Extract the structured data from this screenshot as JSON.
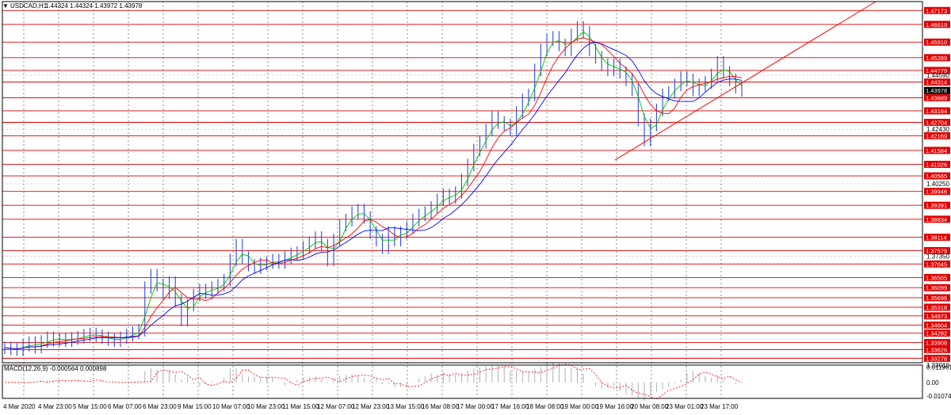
{
  "header": {
    "symbol_label": "USDCAD,H1",
    "ohlc": "1.44324 1.44324 1.43972 1.43978",
    "arrow_glyph": "▼"
  },
  "colors": {
    "grid": "#c0c0c0",
    "level_line": "#e00000",
    "level_label_bg": "#e00000",
    "price_bars": "#2a4bd8",
    "ma_fast": "#00c000",
    "ma_mid": "#ff0000",
    "ma_slow": "#0000ff",
    "trendline": "#ff0000",
    "macd_hist": "#b0b0b0",
    "macd_signal": "#ff0000",
    "current_price_bg": "#000000"
  },
  "chart_data": {
    "type": "line",
    "title": "USDCAD,H1",
    "price_axis": {
      "ylim": [
        1.331,
        1.4753
      ],
      "plain_ticks": [
        "1.44590",
        "1.42430",
        "1.40250",
        "1.37350",
        "1.33010"
      ],
      "current_price": "1.43978"
    },
    "levels": [
      "1.47173",
      "1.46619",
      "1.45910",
      "1.45289",
      "1.44779",
      "1.44314",
      "1.43689",
      "1.43164",
      "1.42704",
      "1.42169",
      "1.41584",
      "1.41026",
      "1.40565",
      "1.39946",
      "1.39391",
      "1.38834",
      "1.38114",
      "1.37579",
      "1.37045",
      "1.36505",
      "1.36099",
      "1.35696",
      "1.35318",
      "1.34973",
      "1.34604",
      "1.34282",
      "1.33908",
      "1.33626",
      "1.33278"
    ],
    "x_labels": [
      "4 Mar 2020",
      "4 Mar 23:00",
      "5 Mar 15:00",
      "6 Mar 07:00",
      "6 Mar 23:00",
      "9 Mar 15:00",
      "10 Mar 07:00",
      "10 Mar 23:00",
      "11 Mar 15:00",
      "12 Mar 07:00",
      "12 Mar 23:00",
      "13 Mar 15:00",
      "16 Mar 08:00",
      "17 Mar 00:00",
      "17 Mar 16:00",
      "18 Mar 08:00",
      "19 Mar 00:00",
      "19 Mar 16:00",
      "20 Mar 08:00",
      "23 Mar 01:00",
      "23 Mar 17:00"
    ],
    "price_path": [
      1.337,
      1.3365,
      1.3362,
      1.338,
      1.339,
      1.3372,
      1.3395,
      1.341,
      1.34,
      1.3405,
      1.3398,
      1.3407,
      1.3412,
      1.342,
      1.3425,
      1.3418,
      1.341,
      1.3402,
      1.3398,
      1.341,
      1.342,
      1.343,
      1.344,
      1.361,
      1.366,
      1.362,
      1.359,
      1.363,
      1.356,
      1.348,
      1.354,
      1.358,
      1.36,
      1.359,
      1.361,
      1.362,
      1.364,
      1.372,
      1.378,
      1.373,
      1.37,
      1.369,
      1.3705,
      1.371,
      1.372,
      1.371,
      1.373,
      1.3745,
      1.375,
      1.377,
      1.379,
      1.381,
      1.378,
      1.372,
      1.38,
      1.386,
      1.388,
      1.391,
      1.392,
      1.389,
      1.383,
      1.38,
      1.377,
      1.383,
      1.38,
      1.383,
      1.385,
      1.388,
      1.39,
      1.391,
      1.393,
      1.396,
      1.398,
      1.397,
      1.399,
      1.404,
      1.41,
      1.416,
      1.419,
      1.424,
      1.429,
      1.427,
      1.426,
      1.424,
      1.431,
      1.436,
      1.438,
      1.448,
      1.456,
      1.46,
      1.461,
      1.458,
      1.456,
      1.462,
      1.465,
      1.463,
      1.456,
      1.453,
      1.45,
      1.448,
      1.45,
      1.447,
      1.444,
      1.44,
      1.428,
      1.42,
      1.426,
      1.432,
      1.438,
      1.439,
      1.442,
      1.445,
      1.444,
      1.44,
      1.442,
      1.443,
      1.446,
      1.451,
      1.447,
      1.444,
      1.441,
      1.4398
    ],
    "macd": {
      "label": "MACD(12,26,9) -0.000564 0.000898",
      "ticks": [
        "0.011961",
        "0.00",
        "-0.010748"
      ],
      "ylim": [
        -0.0125,
        0.0135
      ]
    }
  }
}
